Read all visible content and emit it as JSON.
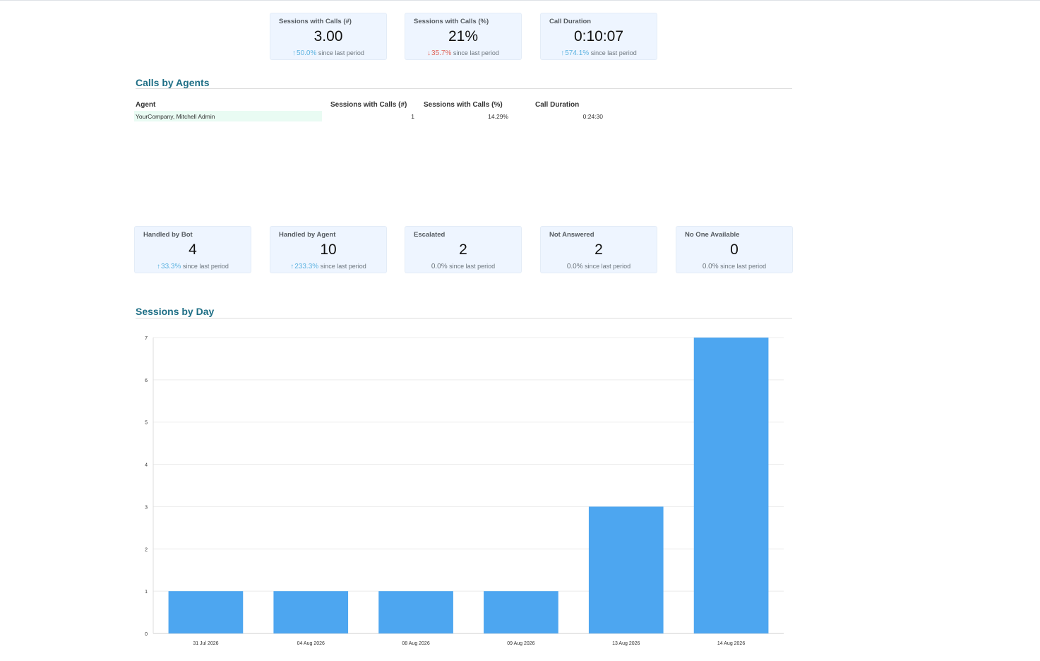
{
  "kpis_top": [
    {
      "title": "Sessions with Calls (#)",
      "value": "3.00",
      "trend": "up",
      "pct": "50.0%",
      "suffix": "since last period"
    },
    {
      "title": "Sessions with Calls (%)",
      "value": "21%",
      "trend": "down",
      "pct": "35.7%",
      "suffix": "since last period"
    },
    {
      "title": "Call Duration",
      "value": "0:10:07",
      "trend": "up",
      "pct": "574.1%",
      "suffix": "since last period"
    }
  ],
  "calls_by_agents": {
    "title": "Calls by Agents",
    "headers": [
      "Agent",
      "Sessions with Calls (#)",
      "Sessions with Calls (%)",
      "Call Duration"
    ],
    "rows": [
      {
        "agent": "YourCompany, Mitchell Admin",
        "sessions_count": "1",
        "sessions_pct": "14.29%",
        "duration": "0:24:30"
      }
    ]
  },
  "kpis_bottom": [
    {
      "title": "Handled by Bot",
      "value": "4",
      "trend": "up",
      "pct": "33.3%",
      "suffix": "since last period"
    },
    {
      "title": "Handled by Agent",
      "value": "10",
      "trend": "up",
      "pct": "233.3%",
      "suffix": "since last period"
    },
    {
      "title": "Escalated",
      "value": "2",
      "trend": "flat",
      "pct": "0.0%",
      "suffix": "since last period"
    },
    {
      "title": "Not Answered",
      "value": "2",
      "trend": "flat",
      "pct": "0.0%",
      "suffix": "since last period"
    },
    {
      "title": "No One Available",
      "value": "0",
      "trend": "flat",
      "pct": "0.0%",
      "suffix": "since last period"
    }
  ],
  "sessions_by_day": {
    "title": "Sessions by Day"
  },
  "chart_data": {
    "type": "bar",
    "categories": [
      "31 Jul 2026",
      "04 Aug 2026",
      "08 Aug 2026",
      "09 Aug 2026",
      "13 Aug 2026",
      "14 Aug 2026"
    ],
    "values": [
      1,
      1,
      1,
      1,
      3,
      7
    ],
    "yticks": [
      "0",
      "1",
      "2",
      "3",
      "4",
      "5",
      "6",
      "7"
    ],
    "ylim": [
      0,
      7
    ],
    "grid": true,
    "legend": "none",
    "bar_color": "#4da6f0"
  },
  "colors": {
    "up": "#5bb2e0",
    "down": "#e0645a",
    "section_title": "#1f6f86",
    "kpi_bg": "#eef5ff"
  }
}
